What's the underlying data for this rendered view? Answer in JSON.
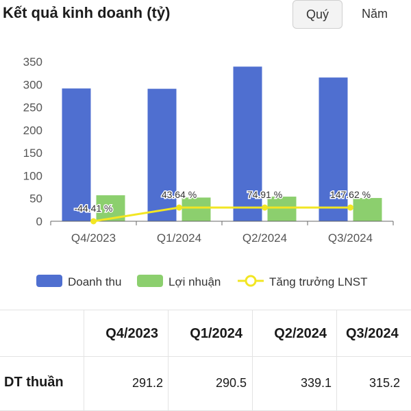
{
  "header": {
    "title": "Kết quả kinh doanh (tỷ)",
    "tabs": [
      {
        "label": "Quý",
        "active": true
      },
      {
        "label": "Năm",
        "active": false
      }
    ]
  },
  "colors": {
    "revenue": "#4f6fd0",
    "profit": "#8ccf6e",
    "growth": "#f2e623"
  },
  "chart_data": {
    "type": "bar",
    "categories": [
      "Q4/2023",
      "Q1/2024",
      "Q2/2024",
      "Q3/2024"
    ],
    "ylim": [
      0,
      350
    ],
    "yticks": [
      0,
      50,
      100,
      150,
      200,
      250,
      300,
      350
    ],
    "series": [
      {
        "name": "Doanh thu",
        "type": "bar",
        "values": [
          291.2,
          290.5,
          339.1,
          315.2
        ]
      },
      {
        "name": "Lợi nhuận",
        "type": "bar",
        "values": [
          57,
          52,
          54,
          51
        ]
      },
      {
        "name": "Tăng trưởng LNST",
        "type": "line",
        "values": [
          -44.41,
          43.64,
          74.91,
          147.62
        ],
        "labels": [
          "-44.41 %",
          "43.64 %",
          "74.91 %",
          "147.62 %"
        ]
      }
    ],
    "legend": "bottom",
    "grid": false
  },
  "table": {
    "columns": [
      "Q4/2023",
      "Q1/2024",
      "Q2/2024",
      "Q3/2024"
    ],
    "rows": [
      {
        "label": "DT thuần",
        "values": [
          "291.2",
          "290.5",
          "339.1",
          "315.2"
        ]
      }
    ]
  }
}
